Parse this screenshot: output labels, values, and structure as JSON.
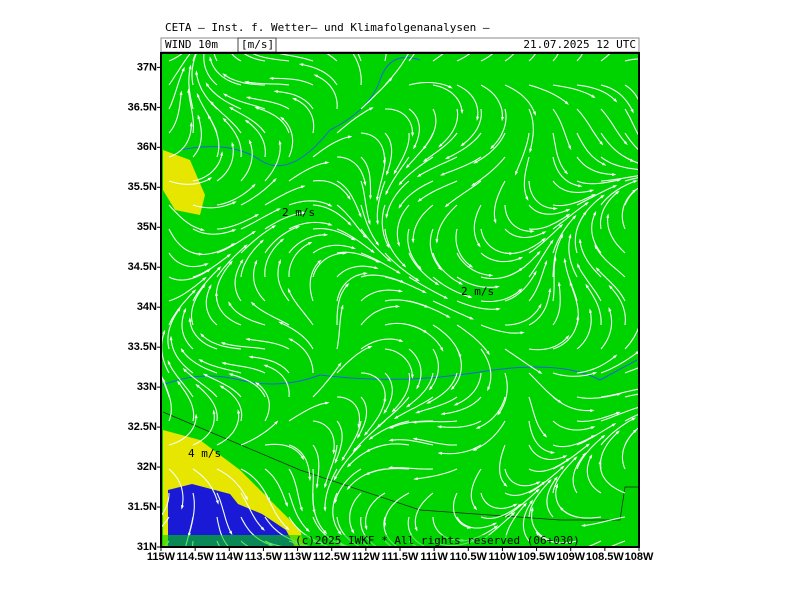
{
  "header": {
    "title": "CETA — Inst. f. Wetter— und Klimafolgenanalysen —",
    "field": "WIND 10m",
    "unit": "[m/s]",
    "valid_time": "21.07.2025 12 UTC"
  },
  "map": {
    "lat_range": [
      31,
      37.18
    ],
    "lon_range": [
      -115,
      -108
    ],
    "lat_ticks": [
      {
        "value": 31,
        "label": "31N"
      },
      {
        "value": 31.5,
        "label": "31.5N"
      },
      {
        "value": 32,
        "label": "32N"
      },
      {
        "value": 32.5,
        "label": "32.5N"
      },
      {
        "value": 33,
        "label": "33N"
      },
      {
        "value": 33.5,
        "label": "33.5N"
      },
      {
        "value": 34,
        "label": "34N"
      },
      {
        "value": 34.5,
        "label": "34.5N"
      },
      {
        "value": 35,
        "label": "35N"
      },
      {
        "value": 35.5,
        "label": "35.5N"
      },
      {
        "value": 36,
        "label": "36N"
      },
      {
        "value": 36.5,
        "label": "36.5N"
      },
      {
        "value": 37,
        "label": "37N"
      }
    ],
    "lon_ticks": [
      {
        "value": -115,
        "label": "115W"
      },
      {
        "value": -114.5,
        "label": "114.5W"
      },
      {
        "value": -114,
        "label": "114W"
      },
      {
        "value": -113.5,
        "label": "113.5W"
      },
      {
        "value": -113,
        "label": "113W"
      },
      {
        "value": -112.5,
        "label": "112.5W"
      },
      {
        "value": -112,
        "label": "112W"
      },
      {
        "value": -111.5,
        "label": "111.5W"
      },
      {
        "value": -111,
        "label": "111W"
      },
      {
        "value": -110.5,
        "label": "110.5W"
      },
      {
        "value": -110,
        "label": "110W"
      },
      {
        "value": -109.5,
        "label": "109.5W"
      },
      {
        "value": -109,
        "label": "109W"
      },
      {
        "value": -108.5,
        "label": "108.5W"
      },
      {
        "value": -108,
        "label": "108W"
      }
    ],
    "labels": [
      "2 m/s",
      "2 m/s",
      "4 m/s"
    ]
  },
  "footer": {
    "copyright": "(c)2025 IWKF * All rights reserved (06+030)"
  }
}
